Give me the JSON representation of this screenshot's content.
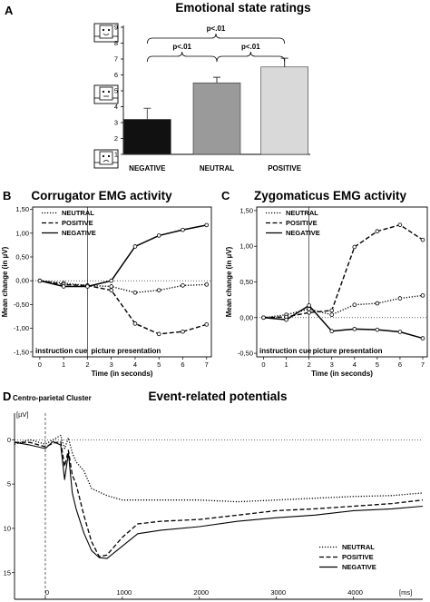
{
  "panels": [
    {
      "letter": "A",
      "title": "Emotional state ratings",
      "chart_data": {
        "type": "bar",
        "categories": [
          "NEGATIVE",
          "NEUTRAL",
          "POSITIVE"
        ],
        "values": [
          3.2,
          5.5,
          6.5
        ],
        "errors": [
          0.7,
          0.35,
          0.55
        ],
        "ylim": [
          1,
          9
        ],
        "yticks": [
          1,
          2,
          3,
          4,
          5,
          6,
          7,
          8,
          9
        ],
        "bar_fills": [
          "#111111",
          "#9a9a9a",
          "#d9d9d9"
        ],
        "significance": [
          {
            "from": "NEGATIVE",
            "to": "NEUTRAL",
            "label": "p<.01"
          },
          {
            "from": "NEUTRAL",
            "to": "POSITIVE",
            "label": "p<.01"
          },
          {
            "from": "NEGATIVE",
            "to": "POSITIVE",
            "label": "p<.01"
          }
        ],
        "icons": [
          "sam-manikin-positive-icon",
          "sam-manikin-neutral-icon",
          "sam-manikin-negative-icon"
        ]
      }
    },
    {
      "letter": "B",
      "title": "Corrugator EMG activity",
      "chart_data": {
        "type": "line",
        "x": [
          0,
          1,
          2,
          3,
          4,
          5,
          6,
          7
        ],
        "xlabel": "Time (in seconds)",
        "ylabel": "Mean change (in µV)",
        "xlim": [
          -0.3,
          7.2
        ],
        "ylim": [
          -1.6,
          1.55
        ],
        "yticks": [
          "-1,50",
          "-1,00",
          "-0,50",
          "0,00",
          "0,50",
          "1,00",
          "1,50"
        ],
        "ytick_values": [
          -1.5,
          -1.0,
          -0.5,
          0.0,
          0.5,
          1.0,
          1.5
        ],
        "phase_labels": [
          "instruction cue",
          "picture presentation"
        ],
        "divider_x": 2,
        "series": [
          {
            "name": "NEUTRAL",
            "style": "dotted",
            "values": [
              0.0,
              -0.05,
              -0.1,
              -0.12,
              -0.25,
              -0.2,
              -0.1,
              -0.08
            ]
          },
          {
            "name": "POSITIVE",
            "style": "dashed",
            "values": [
              0.0,
              -0.08,
              -0.1,
              -0.2,
              -0.9,
              -1.12,
              -1.07,
              -0.92
            ]
          },
          {
            "name": "NEGATIVE",
            "style": "solid",
            "values": [
              0.0,
              -0.12,
              -0.12,
              0.0,
              0.72,
              0.95,
              1.07,
              1.17
            ]
          }
        ]
      }
    },
    {
      "letter": "C",
      "title": "Zygomaticus EMG activity",
      "chart_data": {
        "type": "line",
        "x": [
          0,
          1,
          2,
          3,
          4,
          5,
          6,
          7
        ],
        "xlabel": "Time (in seconds)",
        "ylabel": "Mean change (in µV)",
        "xlim": [
          -0.3,
          7.2
        ],
        "ylim": [
          -0.55,
          1.55
        ],
        "yticks": [
          "-0,50",
          "0,00",
          "0,50",
          "1,00",
          "1,50"
        ],
        "ytick_values": [
          -0.5,
          0.0,
          0.5,
          1.0,
          1.5
        ],
        "phase_labels": [
          "instruction cue",
          "picture presentation"
        ],
        "divider_x": 2,
        "series": [
          {
            "name": "NEUTRAL",
            "style": "dotted",
            "values": [
              0.0,
              0.04,
              0.12,
              0.04,
              0.18,
              0.2,
              0.27,
              0.31
            ]
          },
          {
            "name": "POSITIVE",
            "style": "dashed",
            "values": [
              0.0,
              0.01,
              0.07,
              0.1,
              0.99,
              1.21,
              1.3,
              1.09
            ]
          },
          {
            "name": "NEGATIVE",
            "style": "solid",
            "values": [
              0.0,
              -0.03,
              0.17,
              -0.19,
              -0.16,
              -0.17,
              -0.2,
              -0.29
            ]
          }
        ]
      }
    },
    {
      "letter": "D",
      "title": "Event-related potentials",
      "region_label": "Centro-parietal Cluster",
      "chart_data": {
        "type": "line",
        "y_unit": "[µV]",
        "x_unit": "[ms]",
        "xlim": [
          -400,
          4900
        ],
        "ylim": [
          -3,
          18
        ],
        "y_inverted": true,
        "xticks": [
          0,
          1000,
          2000,
          3000,
          4000
        ],
        "yticks": [
          0,
          5,
          10,
          15
        ],
        "onset_x": 0,
        "series": [
          {
            "name": "NEUTRAL",
            "style": "dotted",
            "x": [
              -400,
              -200,
              0,
              100,
              200,
              250,
              300,
              350,
              400,
              500,
              600,
              800,
              1000,
              1500,
              2000,
              2500,
              3000,
              3500,
              4000,
              4500,
              4900
            ],
            "values": [
              0.5,
              0,
              0.5,
              0,
              -0.5,
              1,
              -0.2,
              1.5,
              2.5,
              3.5,
              5.5,
              6.3,
              6.8,
              6.8,
              6.8,
              7.0,
              6.8,
              6.6,
              6.4,
              6.3,
              6.0
            ]
          },
          {
            "name": "POSITIVE",
            "style": "dashed",
            "x": [
              -400,
              -200,
              0,
              100,
              200,
              250,
              300,
              350,
              400,
              500,
              600,
              700,
              800,
              1000,
              1200,
              1500,
              2000,
              2500,
              3000,
              3500,
              4000,
              4500,
              4900
            ],
            "values": [
              0.3,
              0.3,
              0.8,
              0.4,
              0.2,
              3,
              1.2,
              4,
              5,
              8.5,
              11.5,
              13.2,
              13,
              11,
              9.5,
              9.2,
              9.0,
              8.5,
              8.0,
              7.8,
              7.5,
              7.2,
              6.8
            ]
          },
          {
            "name": "NEGATIVE",
            "style": "solid",
            "x": [
              -400,
              -200,
              0,
              100,
              200,
              250,
              300,
              350,
              400,
              500,
              600,
              700,
              800,
              1000,
              1200,
              1500,
              2000,
              2500,
              3000,
              3500,
              4000,
              4500,
              4900
            ],
            "values": [
              0.3,
              0.6,
              1.0,
              0.2,
              0.6,
              4.5,
              1.5,
              6,
              7.8,
              10.5,
              12.5,
              13.3,
              13.4,
              12,
              10.6,
              10.2,
              9.8,
              9.2,
              8.8,
              8.5,
              8.0,
              7.8,
              7.5
            ]
          }
        ]
      }
    }
  ]
}
